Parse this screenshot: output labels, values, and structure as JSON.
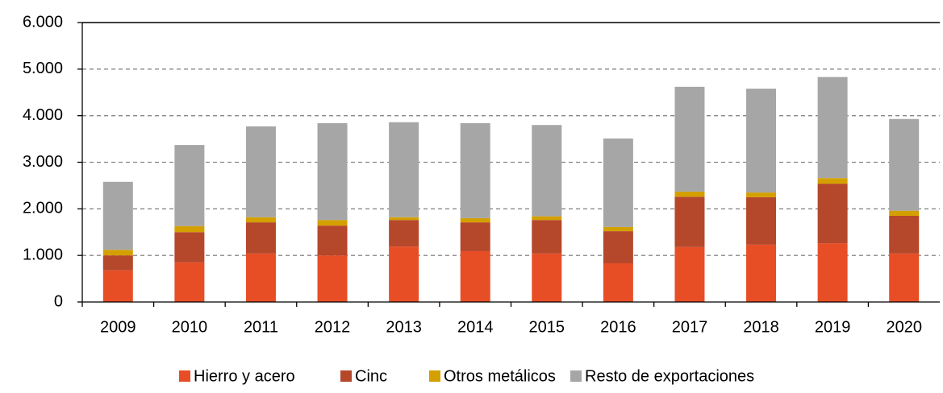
{
  "chart_data": {
    "type": "stacked_bar",
    "categories": [
      "2009",
      "2010",
      "2011",
      "2012",
      "2013",
      "2014",
      "2015",
      "2016",
      "2017",
      "2018",
      "2019",
      "2020"
    ],
    "series": [
      {
        "name": "Hierro y acero",
        "color": "#e84e26",
        "values": [
          680,
          850,
          1040,
          1000,
          1190,
          1090,
          1040,
          830,
          1180,
          1230,
          1260,
          1040
        ]
      },
      {
        "name": "Cinc",
        "color": "#b5472a",
        "values": [
          320,
          650,
          670,
          640,
          570,
          620,
          720,
          690,
          1080,
          1020,
          1280,
          810
        ]
      },
      {
        "name": "Otros metálicos",
        "color": "#d4a000",
        "values": [
          120,
          130,
          110,
          120,
          60,
          90,
          80,
          90,
          110,
          100,
          120,
          110
        ]
      },
      {
        "name": "Resto de exportaciones",
        "color": "#a6a6a6",
        "values": [
          1460,
          1740,
          1950,
          2080,
          2040,
          2040,
          1960,
          1900,
          2250,
          2230,
          2170,
          1970
        ]
      }
    ],
    "ylim": [
      0,
      6000
    ],
    "yticks": [
      0,
      {
        "value": 1000,
        "label": "1.000"
      },
      {
        "value": 2000,
        "label": "2.000"
      },
      {
        "value": 3000,
        "label": "3.000"
      },
      {
        "value": 4000,
        "label": "4.000"
      },
      {
        "value": 5000,
        "label": "5.000"
      },
      {
        "value": 6000,
        "label": "6.000"
      }
    ],
    "grid": true,
    "legend": "bottom"
  }
}
